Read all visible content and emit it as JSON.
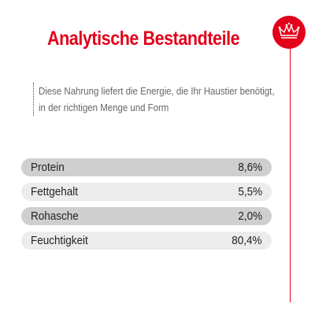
{
  "title": "Analytische Bestandteile",
  "description": [
    "Diese Nahrung liefert die Energie, die Ihr Haustier benötigt,",
    "in der richtigen Menge und Form"
  ],
  "nutrients": [
    {
      "label": "Protein",
      "value": "8,6%"
    },
    {
      "label": "Fettgehalt",
      "value": "5,5%"
    },
    {
      "label": "Rohasche",
      "value": "2,0%"
    },
    {
      "label": "Feuchtigkeit",
      "value": "80,4%"
    }
  ],
  "colors": {
    "accent": "#e2001a",
    "row_dark": "#cfcfcf",
    "row_light": "#ececec"
  },
  "badge_icon": "crown-icon"
}
